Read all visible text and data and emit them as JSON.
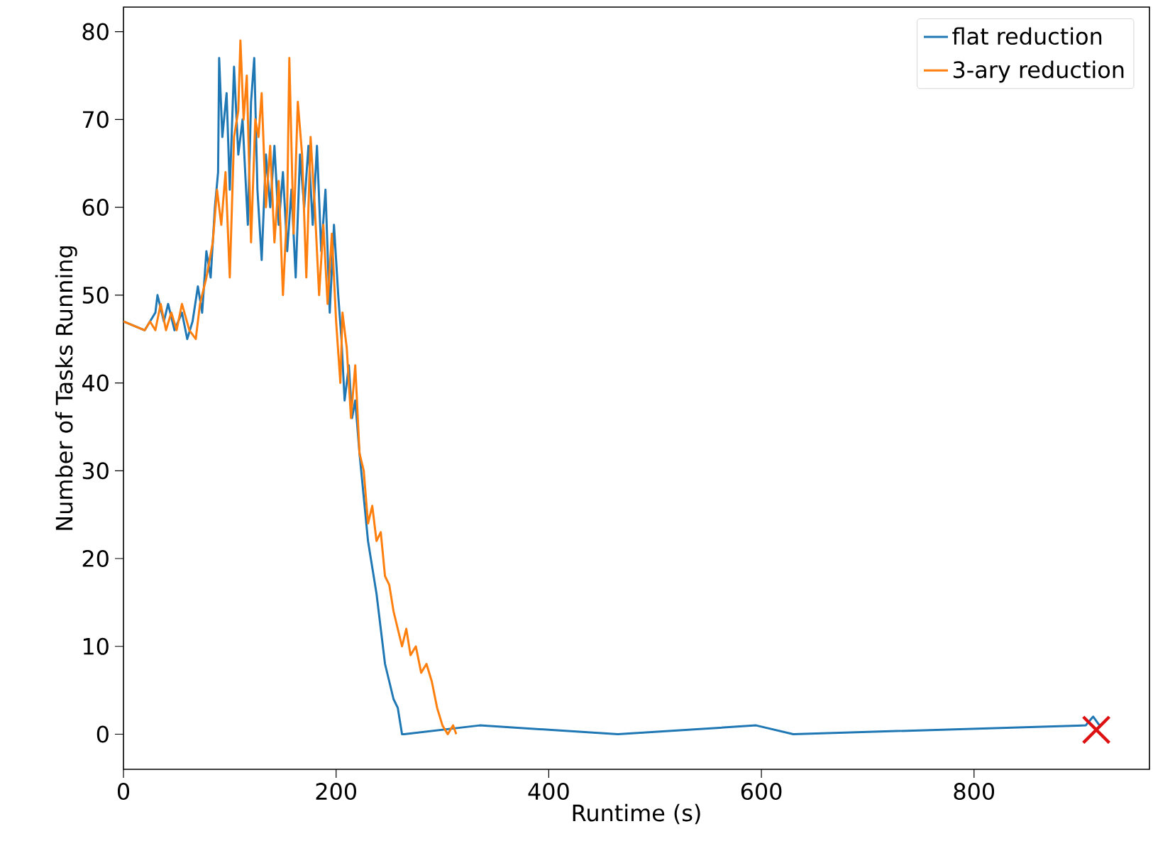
{
  "chart_data": {
    "type": "line",
    "xlabel": "Runtime (s)",
    "ylabel": "Number of Tasks Running",
    "xlim": [
      0,
      965
    ],
    "ylim": [
      -4,
      82.8
    ],
    "xticks": [
      0,
      200,
      400,
      600,
      800
    ],
    "yticks": [
      0,
      10,
      20,
      30,
      40,
      50,
      60,
      70,
      80
    ],
    "legend": "top right",
    "grid": false,
    "series": [
      {
        "name": "flat reduction",
        "color": "#1f77b4",
        "x": [
          0,
          20,
          25,
          30,
          32,
          38,
          42,
          48,
          55,
          60,
          65,
          70,
          74,
          78,
          82,
          86,
          89,
          90,
          93,
          97,
          100,
          104,
          108,
          112,
          117,
          120,
          123,
          126,
          130,
          134,
          138,
          142,
          146,
          150,
          154,
          158,
          162,
          166,
          170,
          174,
          178,
          182,
          186,
          190,
          194,
          198,
          202,
          205,
          208,
          212,
          215,
          218,
          222,
          226,
          230,
          234,
          238,
          242,
          246,
          250,
          254,
          258,
          262,
          264,
          335,
          465,
          595,
          630,
          905,
          912,
          918
        ],
        "values": [
          47,
          46,
          47,
          48,
          50,
          47,
          49,
          46,
          48,
          45,
          47,
          51,
          48,
          55,
          52,
          60,
          64,
          77,
          68,
          73,
          62,
          76,
          66,
          70,
          58,
          72,
          77,
          62,
          54,
          66,
          60,
          67,
          58,
          64,
          55,
          62,
          52,
          66,
          60,
          67,
          58,
          67,
          55,
          62,
          48,
          58,
          50,
          45,
          38,
          42,
          36,
          38,
          32,
          27,
          22,
          19,
          16,
          12,
          8,
          6,
          4,
          3,
          0,
          0,
          1,
          0,
          1,
          0,
          1,
          2,
          1
        ]
      },
      {
        "name": "3-ary reduction",
        "color": "#ff7f0e",
        "x": [
          0,
          20,
          25,
          30,
          35,
          40,
          45,
          50,
          55,
          62,
          68,
          72,
          78,
          84,
          88,
          92,
          96,
          100,
          104,
          108,
          110,
          113,
          116,
          120,
          124,
          127,
          130,
          134,
          138,
          142,
          146,
          150,
          154,
          156,
          160,
          164,
          168,
          172,
          176,
          180,
          184,
          188,
          192,
          196,
          200,
          204,
          206,
          210,
          214,
          218,
          222,
          226,
          230,
          234,
          238,
          242,
          246,
          250,
          254,
          258,
          262,
          266,
          270,
          275,
          280,
          285,
          290,
          295,
          300,
          305,
          310,
          313
        ],
        "values": [
          47,
          46,
          47,
          46,
          49,
          46,
          48,
          46,
          49,
          46,
          45,
          49,
          52,
          56,
          62,
          58,
          64,
          52,
          68,
          71,
          79,
          70,
          75,
          56,
          70,
          68,
          73,
          60,
          67,
          56,
          63,
          50,
          60,
          77,
          57,
          72,
          66,
          52,
          68,
          60,
          50,
          58,
          49,
          57,
          47,
          40,
          48,
          44,
          36,
          42,
          32,
          30,
          24,
          26,
          22,
          23,
          18,
          17,
          14,
          12,
          10,
          12,
          9,
          10,
          7,
          8,
          6,
          3,
          1,
          0,
          1,
          0
        ]
      },
      {
        "type": "scatter",
        "marker": "cross",
        "color": "#dd1111",
        "x": [
          915
        ],
        "values": [
          0.5
        ]
      }
    ]
  }
}
